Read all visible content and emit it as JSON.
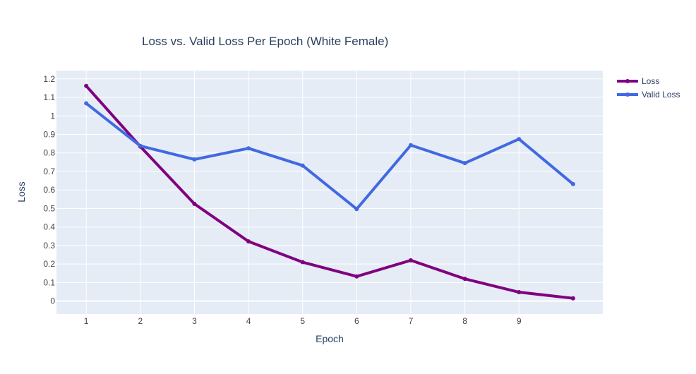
{
  "chart_data": {
    "type": "line",
    "title": "Loss vs. Valid Loss Per Epoch (White Female)",
    "xlabel": "Epoch",
    "ylabel": "Loss",
    "x": [
      1,
      2,
      3,
      4,
      5,
      6,
      7,
      8,
      9,
      10
    ],
    "x_tick_labels": [
      "1",
      "2",
      "3",
      "4",
      "5",
      "6",
      "7",
      "8",
      "9"
    ],
    "y_tick_labels": [
      "0",
      "0.1",
      "0.2",
      "0.3",
      "0.4",
      "0.5",
      "0.6",
      "0.7",
      "0.8",
      "0.9",
      "1",
      "1.1",
      "1.2"
    ],
    "xlim": [
      0.45,
      10.55
    ],
    "ylim": [
      -0.07,
      1.245
    ],
    "grid": true,
    "legend_position": "top-right",
    "series": [
      {
        "name": "Loss",
        "color": "#800080",
        "values": [
          1.162,
          0.835,
          0.525,
          0.322,
          0.21,
          0.133,
          0.22,
          0.12,
          0.048,
          0.015
        ]
      },
      {
        "name": "Valid Loss",
        "color": "#4169E1",
        "values": [
          1.068,
          0.838,
          0.765,
          0.825,
          0.732,
          0.497,
          0.842,
          0.745,
          0.875,
          0.632
        ]
      }
    ],
    "colors": {
      "plot_background": "#E5ECF6",
      "grid": "#ffffff",
      "text": "#2a3f5f",
      "axis_text": "#444444"
    }
  }
}
